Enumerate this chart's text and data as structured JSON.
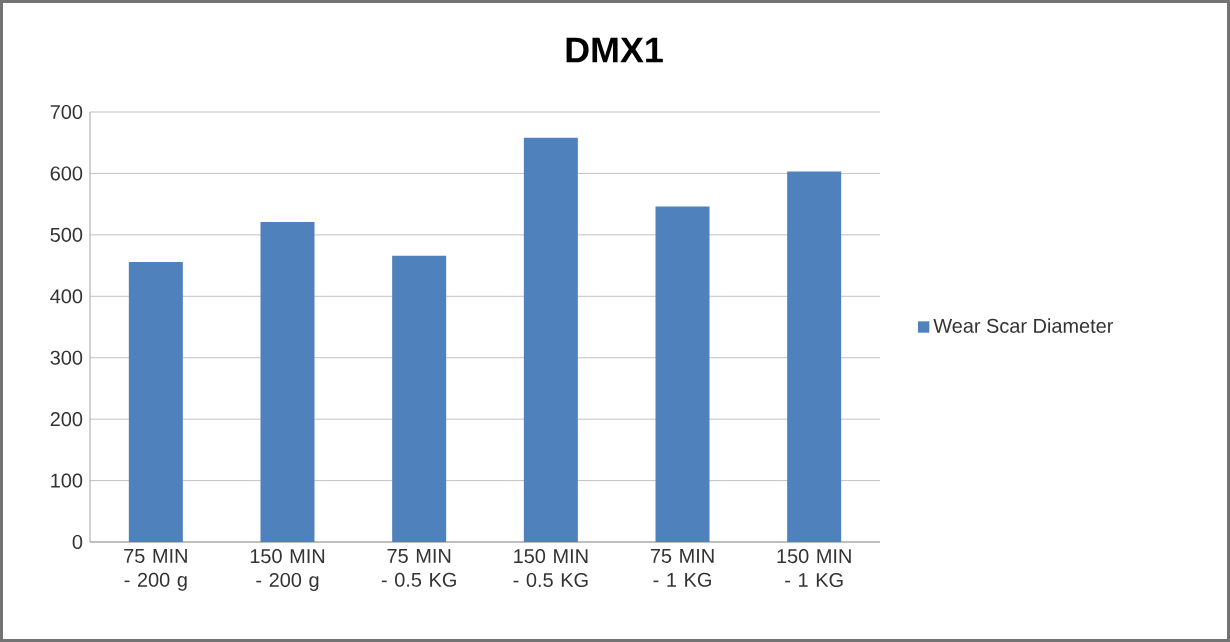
{
  "chart_data": {
    "type": "bar",
    "title": "DMX1",
    "categories": [
      "75 MIN - 200 g",
      "150 MIN - 200 g",
      "75 MIN - 0.5 KG",
      "150 MIN - 0.5 KG",
      "75 MIN - 1 KG",
      "150 MIN - 1 KG"
    ],
    "series": [
      {
        "name": "Wear Scar Diameter",
        "color": "#4f81bd",
        "values": [
          456,
          521,
          466,
          658,
          546,
          603
        ]
      }
    ],
    "ylim": [
      0,
      700
    ],
    "yticks": [
      0,
      100,
      200,
      300,
      400,
      500,
      600,
      700
    ],
    "grid": "y",
    "legend": "right"
  }
}
